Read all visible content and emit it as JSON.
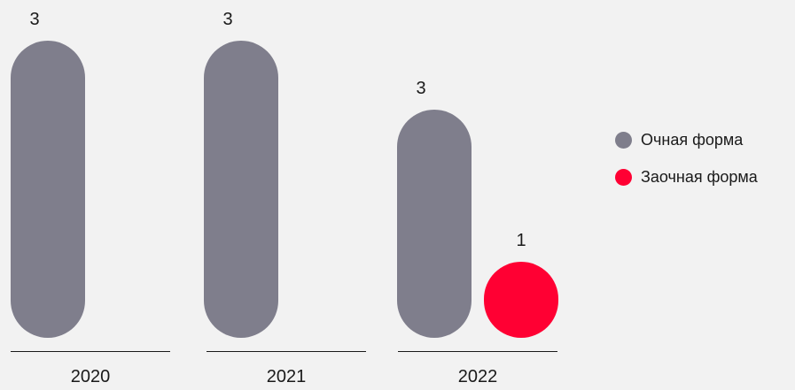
{
  "chart_data": {
    "type": "bar",
    "categories": [
      "2020",
      "2021",
      "2022"
    ],
    "series": [
      {
        "name": "Очная форма",
        "color": "#7f7e8c",
        "values": [
          3,
          3,
          3
        ]
      },
      {
        "name": "Заочная форма",
        "color": "#ff0033",
        "values": [
          null,
          null,
          1
        ]
      }
    ],
    "data_labels": {
      "s0": [
        "3",
        "3",
        "3"
      ],
      "s1": [
        "",
        "",
        "1"
      ]
    },
    "grid": false,
    "legend_position": "right"
  },
  "legend": {
    "items": [
      {
        "label": "Очная форма",
        "color": "#7f7e8c"
      },
      {
        "label": "Заочная форма",
        "color": "#ff0033"
      }
    ]
  }
}
